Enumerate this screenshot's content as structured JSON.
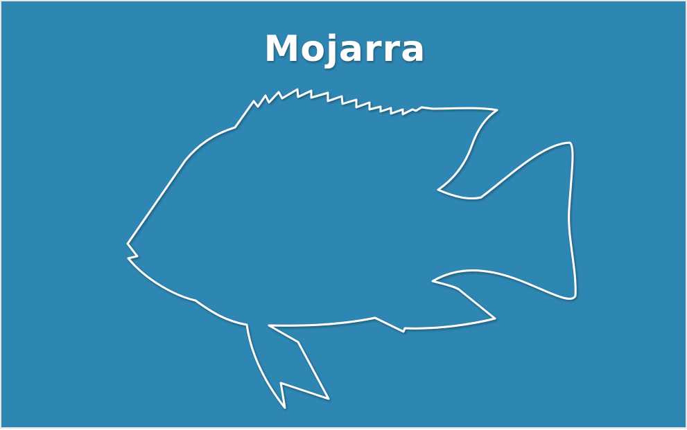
{
  "card": {
    "title": "Mojarra",
    "background_color": "#2e86b2",
    "outline_color": "#ffffff",
    "illustration": "fish-outline-icon"
  }
}
